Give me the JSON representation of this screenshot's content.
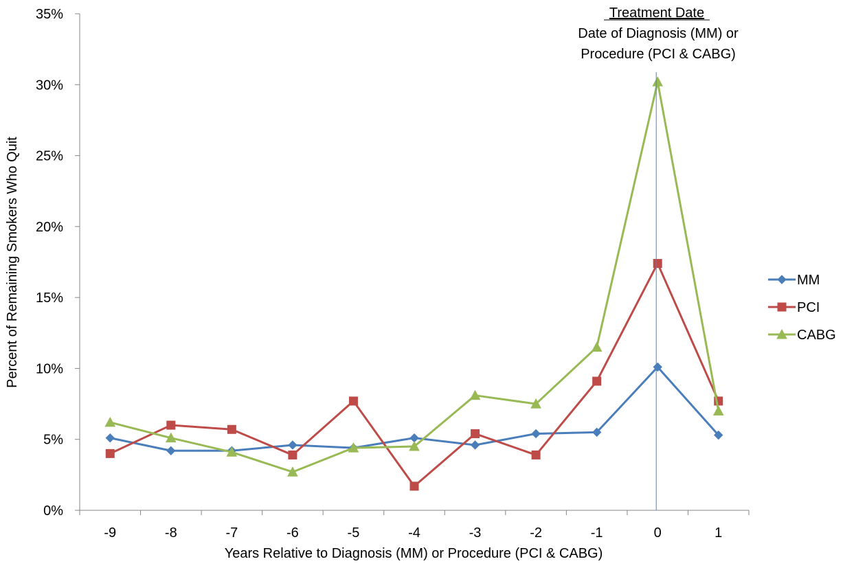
{
  "chart_data": {
    "type": "line",
    "title": "",
    "xlabel": "Years Relative to Diagnosis (MM) or Procedure (PCI & CABG)",
    "ylabel": "Percent of Remaining Smokers Who Quit",
    "x": [
      -9,
      -8,
      -7,
      -6,
      -5,
      -4,
      -3,
      -2,
      -1,
      0,
      1
    ],
    "ylim": [
      0,
      35
    ],
    "yticks": [
      "0%",
      "5%",
      "10%",
      "15%",
      "20%",
      "25%",
      "30%",
      "35%"
    ],
    "grid": false,
    "legend_position": "right",
    "series": [
      {
        "name": "MM",
        "color": "#4a7ebb",
        "marker": "diamond",
        "values": [
          5.1,
          4.2,
          4.2,
          4.6,
          4.4,
          5.1,
          4.6,
          5.4,
          5.5,
          10.1,
          5.3
        ]
      },
      {
        "name": "PCI",
        "color": "#be4b48",
        "marker": "square",
        "values": [
          4.0,
          6.0,
          5.7,
          3.9,
          7.7,
          1.7,
          5.4,
          3.9,
          9.1,
          17.4,
          7.7
        ]
      },
      {
        "name": "CABG",
        "color": "#98b954",
        "marker": "triangle",
        "values": [
          6.2,
          5.1,
          4.1,
          2.7,
          4.4,
          4.5,
          8.1,
          7.5,
          11.5,
          30.2,
          7.0
        ]
      }
    ],
    "annotation": {
      "x": 0,
      "heading": "Treatment Date",
      "line1": "Date of Diagnosis (MM)  or",
      "line2": "Procedure (PCI & CABG)"
    }
  }
}
